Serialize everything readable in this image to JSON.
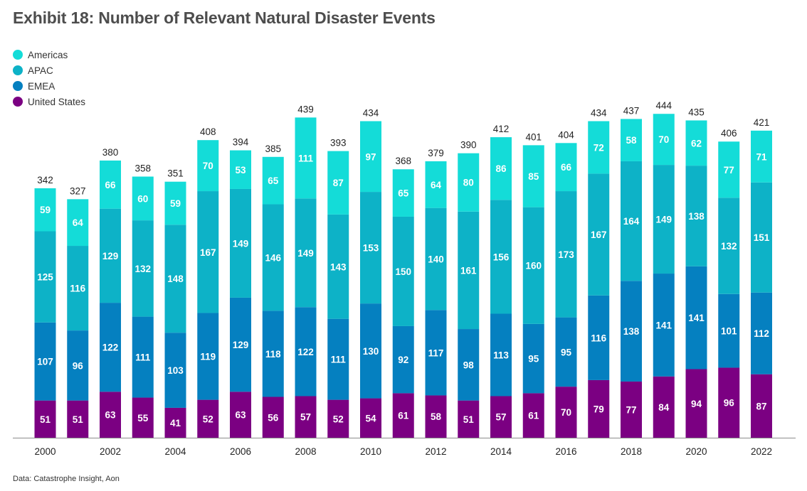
{
  "title": "Exhibit 18: Number of Relevant Natural Disaster Events",
  "source": "Data: Catastrophe Insight, Aon",
  "chart_data": {
    "type": "bar",
    "stacked": true,
    "categories": [
      "2000",
      "2001",
      "2002",
      "2003",
      "2004",
      "2005",
      "2006",
      "2007",
      "2008",
      "2009",
      "2010",
      "2011",
      "2012",
      "2013",
      "2014",
      "2015",
      "2016",
      "2017",
      "2018",
      "2019",
      "2020",
      "2021",
      "2022"
    ],
    "x_tick_labels": [
      "2000",
      "2002",
      "2004",
      "2006",
      "2008",
      "2010",
      "2012",
      "2014",
      "2016",
      "2018",
      "2020",
      "2022"
    ],
    "series": [
      {
        "name": "United States",
        "color": "#7b0082",
        "values": [
          51,
          51,
          63,
          55,
          41,
          52,
          63,
          56,
          57,
          52,
          54,
          61,
          58,
          51,
          57,
          61,
          70,
          79,
          77,
          84,
          94,
          96,
          87
        ]
      },
      {
        "name": "EMEA",
        "color": "#0580c0",
        "values": [
          107,
          96,
          122,
          111,
          103,
          119,
          129,
          118,
          122,
          111,
          130,
          92,
          117,
          98,
          113,
          95,
          95,
          116,
          138,
          141,
          141,
          101,
          112
        ]
      },
      {
        "name": "APAC",
        "color": "#0db2c7",
        "values": [
          125,
          116,
          129,
          132,
          148,
          167,
          149,
          146,
          149,
          143,
          153,
          150,
          140,
          161,
          156,
          160,
          173,
          167,
          164,
          149,
          138,
          132,
          151
        ]
      },
      {
        "name": "Americas",
        "color": "#14dcd8",
        "values": [
          59,
          64,
          66,
          60,
          59,
          70,
          53,
          65,
          111,
          87,
          97,
          65,
          64,
          80,
          86,
          85,
          66,
          72,
          58,
          70,
          62,
          77,
          71
        ]
      }
    ],
    "totals": [
      342,
      327,
      380,
      358,
      351,
      408,
      394,
      385,
      439,
      393,
      434,
      368,
      379,
      390,
      412,
      401,
      404,
      434,
      437,
      444,
      435,
      406,
      421
    ],
    "legend": [
      "Americas",
      "APAC",
      "EMEA",
      "United States"
    ],
    "legend_position": "top-left",
    "ylim": [
      0,
      460
    ],
    "grid": false,
    "xlabel": "",
    "ylabel": ""
  }
}
